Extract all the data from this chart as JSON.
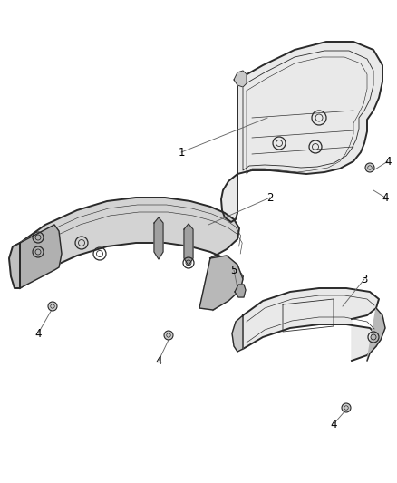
{
  "background_color": "#ffffff",
  "line_color": "#2a2a2a",
  "fig_width": 4.38,
  "fig_height": 5.33,
  "dpi": 100
}
